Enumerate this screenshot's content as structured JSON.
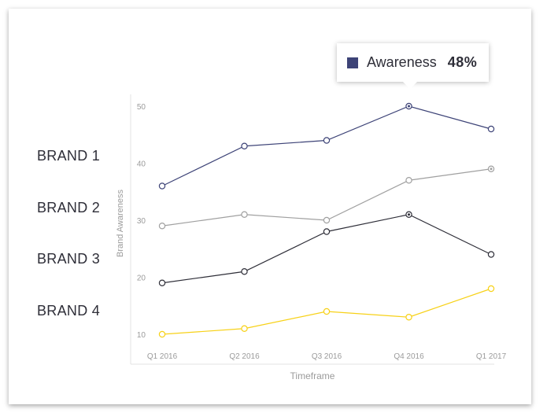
{
  "chart_data": {
    "type": "line",
    "categories": [
      "Q1 2016",
      "Q2 2016",
      "Q3 2016",
      "Q4 2016",
      "Q1 2017"
    ],
    "series": [
      {
        "name": "BRAND 1",
        "color": "#3d4377",
        "values": [
          36,
          43,
          44,
          50,
          46
        ]
      },
      {
        "name": "BRAND 2",
        "color": "#a0a0a0",
        "values": [
          29,
          31,
          30,
          37,
          39
        ]
      },
      {
        "name": "BRAND 3",
        "color": "#2e2e38",
        "values": [
          19,
          21,
          28,
          31,
          24
        ]
      },
      {
        "name": "BRAND 4",
        "color": "#f7d117",
        "values": [
          10,
          11,
          14,
          13,
          18
        ]
      }
    ],
    "yticks": [
      10,
      20,
      30,
      40,
      50
    ],
    "ylim": [
      7.5,
      52
    ],
    "xlabel": "Timeframe",
    "ylabel": "Brand Awareness",
    "grid": false
  },
  "tooltip": {
    "label": "Awareness",
    "value": "48%",
    "color": "#3d4377"
  }
}
